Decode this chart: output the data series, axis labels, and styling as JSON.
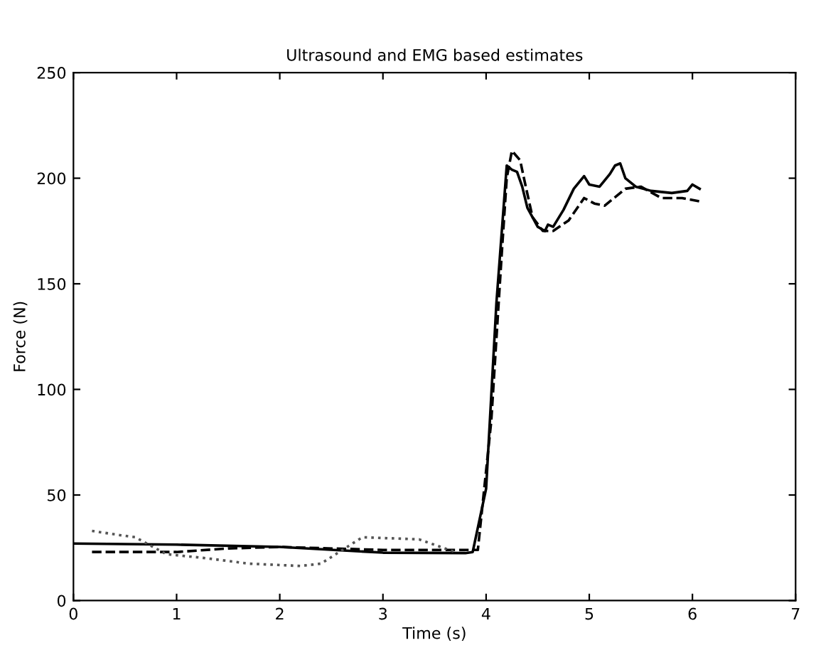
{
  "chart_data": {
    "type": "line",
    "title": "Ultrasound and EMG based estimates",
    "xlabel": "Time (s)",
    "ylabel": "Force (N)",
    "xlim": [
      0,
      7
    ],
    "ylim": [
      0,
      250
    ],
    "xticks": [
      0,
      1,
      2,
      3,
      4,
      5,
      6,
      7
    ],
    "yticks": [
      0,
      50,
      100,
      150,
      200,
      250
    ],
    "grid": false,
    "legend": false,
    "series": [
      {
        "color": "#000000",
        "line_style": "solid",
        "x": [
          0,
          1,
          2,
          3,
          3.8,
          3.87,
          4.0,
          4.1,
          4.2,
          4.25,
          4.3,
          4.35,
          4.4,
          4.5,
          4.57,
          4.6,
          4.65,
          4.75,
          4.85,
          4.95,
          5.0,
          5.1,
          5.2,
          5.25,
          5.3,
          5.35,
          5.45,
          5.6,
          5.8,
          5.95,
          6.0,
          6.07
        ],
        "values": [
          27,
          26.5,
          25.4,
          22.7,
          22.5,
          23,
          53,
          141,
          206,
          204,
          203,
          196,
          186,
          177,
          175,
          178,
          177,
          185,
          195,
          201,
          197,
          196,
          202,
          206,
          207,
          200,
          196,
          194,
          193,
          194,
          197,
          195
        ]
      },
      {
        "color": "#000000",
        "line_style": "dashed",
        "x": [
          0.18,
          1,
          1.5,
          2,
          3,
          3.8,
          3.92,
          4.05,
          4.15,
          4.2,
          4.25,
          4.33,
          4.38,
          4.45,
          4.55,
          4.65,
          4.8,
          4.95,
          5.05,
          5.15,
          5.35,
          5.5,
          5.7,
          5.9,
          6.07
        ],
        "values": [
          23,
          23,
          24.7,
          25.4,
          24,
          24,
          24,
          85,
          163,
          200,
          213,
          208.5,
          197,
          181.6,
          175,
          175,
          180,
          190.6,
          188,
          187,
          195,
          196,
          190.6,
          190.6,
          189
        ]
      },
      {
        "color": "#555555",
        "line_style": "dotted",
        "x": [
          0.18,
          0.45,
          0.6,
          0.9,
          1.3,
          1.7,
          2.2,
          2.4,
          2.8,
          3.35,
          3.7
        ],
        "values": [
          33,
          31,
          30,
          22,
          20,
          17.5,
          16.4,
          17.5,
          30,
          29,
          23
        ]
      }
    ]
  }
}
